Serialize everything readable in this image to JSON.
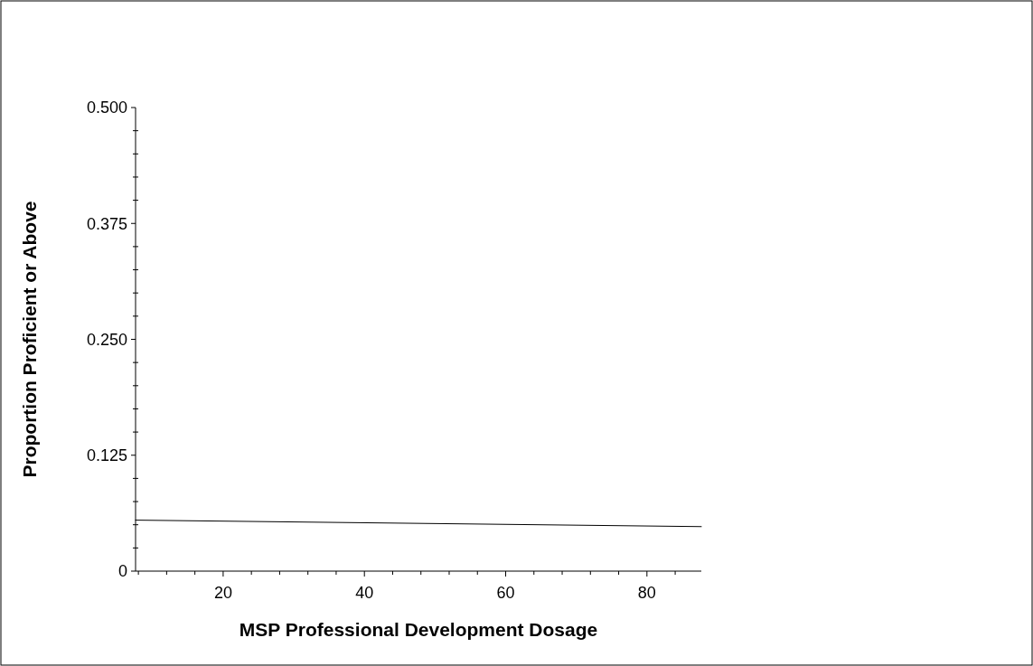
{
  "chart_data": {
    "type": "line",
    "xlabel": "MSP Professional Development Dosage",
    "ylabel": "Proportion Proficient or Above",
    "x": [
      7.6,
      87.7
    ],
    "series": [
      {
        "color": "#000000",
        "values": [
          0.055,
          0.048
        ]
      }
    ],
    "xlim": [
      7.6,
      87.7
    ],
    "xticks": [
      {
        "value": 8,
        "label": null
      },
      {
        "value": 12,
        "label": null
      },
      {
        "value": 16,
        "label": null
      },
      20,
      {
        "value": 24,
        "label": null
      },
      {
        "value": 28,
        "label": null
      },
      {
        "value": 32,
        "label": null
      },
      {
        "value": 36,
        "label": null
      },
      40,
      {
        "value": 44,
        "label": null
      },
      {
        "value": 48,
        "label": null
      },
      {
        "value": 52,
        "label": null
      },
      {
        "value": 56,
        "label": null
      },
      60,
      {
        "value": 64,
        "label": null
      },
      {
        "value": 68,
        "label": null
      },
      {
        "value": 72,
        "label": null
      },
      {
        "value": 76,
        "label": null
      },
      80,
      {
        "value": 84,
        "label": null
      }
    ],
    "ylim": [
      0,
      0.5
    ],
    "yticks": [
      0,
      {
        "value": 0.025,
        "label": null
      },
      {
        "value": 0.05,
        "label": null
      },
      {
        "value": 0.075,
        "label": null
      },
      {
        "value": 0.1,
        "label": null
      },
      {
        "value": 0.125,
        "label": "0.125"
      },
      {
        "value": 0.15,
        "label": null
      },
      {
        "value": 0.175,
        "label": null
      },
      {
        "value": 0.2,
        "label": null
      },
      {
        "value": 0.225,
        "label": null
      },
      {
        "value": 0.25,
        "label": "0.250"
      },
      {
        "value": 0.275,
        "label": null
      },
      {
        "value": 0.3,
        "label": null
      },
      {
        "value": 0.325,
        "label": null
      },
      {
        "value": 0.35,
        "label": null
      },
      {
        "value": 0.375,
        "label": "0.375"
      },
      {
        "value": 0.4,
        "label": null
      },
      {
        "value": 0.425,
        "label": null
      },
      {
        "value": 0.45,
        "label": null
      },
      {
        "value": 0.475,
        "label": null
      },
      {
        "value": 0.5,
        "label": "0.500"
      }
    ],
    "marker": "none",
    "line_style": "solid"
  }
}
